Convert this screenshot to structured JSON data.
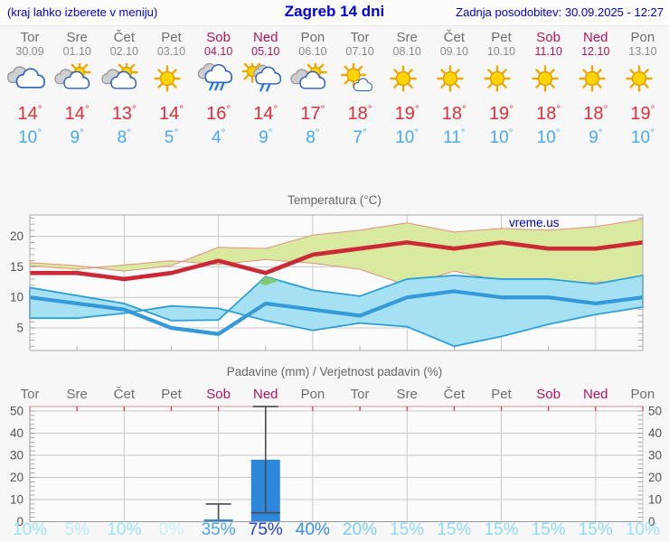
{
  "header": {
    "note": "(kraj lahko izberete v meniju)",
    "title": "Zagreb 14 dni",
    "updated": "Zadnja posodobitev: 30.09.2025 - 12:27"
  },
  "degree": "°",
  "colors": {
    "header_blue": "#0000dd",
    "weekday_gray": "#6e6e6e",
    "weekend_crimson": "#b5125a",
    "tmax_red": "#e02d39",
    "tmin_blue": "#45aaf0"
  },
  "days": [
    {
      "name": "Tor",
      "date": "30.09",
      "weekend": false,
      "icon": "cloudy",
      "tmax": "14",
      "tmin": "10",
      "pop": "10%",
      "pop_color": "#9ce3f8"
    },
    {
      "name": "Sre",
      "date": "01.10",
      "weekend": false,
      "icon": "partly-cloudy",
      "tmax": "14",
      "tmin": "9",
      "pop": "5%",
      "pop_color": "#b7ecfa"
    },
    {
      "name": "Čet",
      "date": "02.10",
      "weekend": false,
      "icon": "partly-cloudy",
      "tmax": "13",
      "tmin": "8",
      "pop": "10%",
      "pop_color": "#9ce3f8"
    },
    {
      "name": "Pet",
      "date": "03.10",
      "weekend": false,
      "icon": "sunny",
      "tmax": "14",
      "tmin": "5",
      "pop": "0%",
      "pop_color": "#c6f1fc"
    },
    {
      "name": "Sob",
      "date": "04.10",
      "weekend": true,
      "icon": "rain",
      "tmax": "16",
      "tmin": "4",
      "pop": "35%",
      "pop_color": "#4aa7ee"
    },
    {
      "name": "Ned",
      "date": "05.10",
      "weekend": true,
      "icon": "sun-rain",
      "tmax": "14",
      "tmin": "9",
      "pop": "75%",
      "pop_color": "#2342d1"
    },
    {
      "name": "Pon",
      "date": "06.10",
      "weekend": false,
      "icon": "partly-cloudy",
      "tmax": "17",
      "tmin": "8",
      "pop": "40%",
      "pop_color": "#338fe8"
    },
    {
      "name": "Tor",
      "date": "07.10",
      "weekend": false,
      "icon": "mostly-sunny",
      "tmax": "18",
      "tmin": "7",
      "pop": "20%",
      "pop_color": "#79d0f4"
    },
    {
      "name": "Sre",
      "date": "08.10",
      "weekend": false,
      "icon": "sunny",
      "tmax": "19",
      "tmin": "10",
      "pop": "15%",
      "pop_color": "#8edaf6"
    },
    {
      "name": "Čet",
      "date": "09.10",
      "weekend": false,
      "icon": "sunny",
      "tmax": "18",
      "tmin": "11",
      "pop": "15%",
      "pop_color": "#8edaf6"
    },
    {
      "name": "Pet",
      "date": "10.10",
      "weekend": false,
      "icon": "sunny",
      "tmax": "19",
      "tmin": "10",
      "pop": "15%",
      "pop_color": "#8edaf6"
    },
    {
      "name": "Sob",
      "date": "11.10",
      "weekend": true,
      "icon": "sunny",
      "tmax": "18",
      "tmin": "10",
      "pop": "15%",
      "pop_color": "#8edaf6"
    },
    {
      "name": "Ned",
      "date": "12.10",
      "weekend": true,
      "icon": "sunny",
      "tmax": "18",
      "tmin": "9",
      "pop": "15%",
      "pop_color": "#8edaf6"
    },
    {
      "name": "Pon",
      "date": "13.10",
      "weekend": false,
      "icon": "sunny",
      "tmax": "19",
      "tmin": "10",
      "pop": "10%",
      "pop_color": "#9ce3f8"
    }
  ],
  "chart_data": [
    {
      "type": "line",
      "title": "Temperatura (°C)",
      "watermark": "vreme.us",
      "x_labels": [
        "Tor",
        "Sre",
        "Čet",
        "Pet",
        "Sob",
        "Ned",
        "Pon",
        "Tor",
        "Sre",
        "Čet",
        "Pet",
        "Sob",
        "Ned",
        "Pon"
      ],
      "ylim": [
        1.3,
        23.5
      ],
      "yticks": [
        5,
        10,
        15,
        20
      ],
      "series": [
        {
          "name": "tmax",
          "values": [
            14,
            14,
            13,
            14,
            16,
            14,
            17,
            18,
            19,
            18,
            19,
            18,
            18,
            19
          ]
        },
        {
          "name": "tmax_upper",
          "values": [
            15.7,
            15.2,
            14.3,
            15.2,
            18.2,
            18.0,
            20.2,
            21.0,
            22.2,
            20.7,
            21.3,
            21.0,
            21.6,
            22.8
          ]
        },
        {
          "name": "tmax_lower",
          "values": [
            12.7,
            12.5,
            11.9,
            12.7,
            14.3,
            12.0,
            14.6,
            15.6,
            16.2,
            15.4,
            16.0,
            15.3,
            14.6,
            15.2
          ]
        },
        {
          "name": "tmin",
          "values": [
            10,
            9,
            8,
            5,
            4,
            9,
            8,
            7,
            10,
            11,
            10,
            10,
            9,
            10
          ]
        },
        {
          "name": "tmin_upper",
          "values": [
            11.6,
            10.3,
            9.0,
            6.2,
            6.3,
            13.4,
            11.2,
            10.2,
            13.0,
            13.6,
            13.0,
            13.0,
            12.2,
            13.6
          ]
        },
        {
          "name": "tmin_lower",
          "values": [
            8.4,
            7.2,
            5.6,
            3.6,
            2.0,
            5.2,
            5.8,
            4.6,
            6.2,
            8.2,
            8.6,
            7.4,
            6.6,
            6.6
          ]
        }
      ],
      "overlap_polygon": [
        [
          4.85,
          12.34
        ],
        [
          5.0,
          13.4
        ],
        [
          5.29,
          12.76
        ],
        [
          5.0,
          12.0
        ]
      ],
      "colors": {
        "line_max": "#cc2936",
        "band_max_fill": "#d9e9a0",
        "band_max_edge": "#e2927c",
        "line_min": "#3399d8",
        "band_min_fill": "#a6e1f3",
        "band_min_edge": "#2e9fd6",
        "overlap": "#7ccb70",
        "grid": "#c9c9c9",
        "axis": "#999999",
        "watermark_blue": "#0000cc"
      }
    },
    {
      "type": "bar",
      "title": "Padavine (mm) / Verjetnost padavin (%)",
      "x_labels": [
        "Tor",
        "Sre",
        "Čet",
        "Pet",
        "Sob",
        "Ned",
        "Pon",
        "Tor",
        "Sre",
        "Čet",
        "Pet",
        "Sob",
        "Ned",
        "Pon"
      ],
      "weekend_indices": [
        4,
        5,
        11,
        12
      ],
      "ylim": [
        0,
        52
      ],
      "yticks": [
        0,
        10,
        20,
        30,
        40,
        50
      ],
      "bars": [
        {
          "day": 4,
          "value": 1,
          "whisker_low": null,
          "whisker_high": 8
        },
        {
          "day": 5,
          "value": 28,
          "whisker_low": 4,
          "whisker_high": 52
        }
      ],
      "probabilities_percent": [
        10,
        5,
        10,
        0,
        35,
        75,
        40,
        20,
        15,
        15,
        15,
        15,
        15,
        10
      ],
      "colors": {
        "bar": "#2c87dd",
        "whisker": "#4a4a4a",
        "grid": "#c9c9c9",
        "axis": "#999999",
        "top_axis": "#e9a0ab",
        "top_tick": "#cc3344"
      }
    }
  ]
}
